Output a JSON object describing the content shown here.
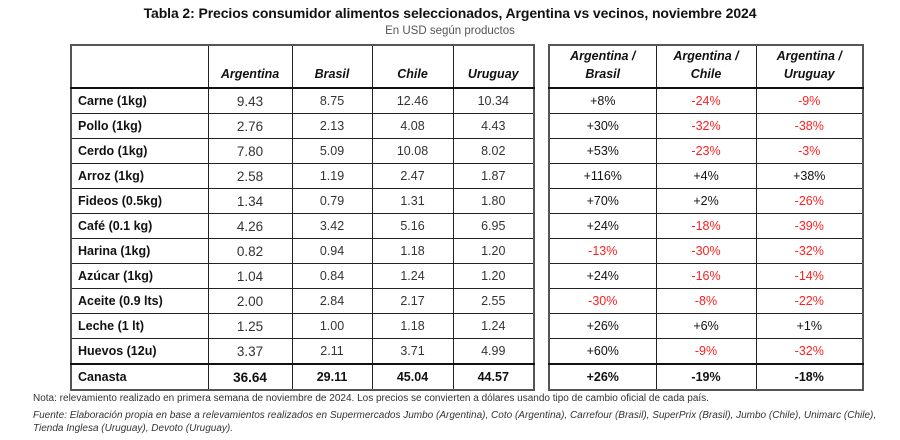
{
  "title": "Tabla 2: Precios consumidor alimentos seleccionados, Argentina vs vecinos, noviembre 2024",
  "subtitle": "En USD según productos",
  "prices_table": {
    "headers": [
      "",
      "Argentina",
      "Brasil",
      "Chile",
      "Uruguay"
    ],
    "rows": [
      {
        "label": "Carne (1kg)",
        "values": [
          "9.43",
          "8.75",
          "12.46",
          "10.34"
        ]
      },
      {
        "label": "Pollo (1kg)",
        "values": [
          "2.76",
          "2.13",
          "4.08",
          "4.43"
        ]
      },
      {
        "label": "Cerdo (1kg)",
        "values": [
          "7.80",
          "5.09",
          "10.08",
          "8.02"
        ]
      },
      {
        "label": "Arroz (1kg)",
        "values": [
          "2.58",
          "1.19",
          "2.47",
          "1.87"
        ]
      },
      {
        "label": "Fideos (0.5kg)",
        "values": [
          "1.34",
          "0.79",
          "1.31",
          "1.80"
        ]
      },
      {
        "label": "Café (0.1 kg)",
        "values": [
          "4.26",
          "3.42",
          "5.16",
          "6.95"
        ]
      },
      {
        "label": "Harina (1kg)",
        "values": [
          "0.82",
          "0.94",
          "1.18",
          "1.20"
        ]
      },
      {
        "label": "Azúcar (1kg)",
        "values": [
          "1.04",
          "0.84",
          "1.24",
          "1.20"
        ]
      },
      {
        "label": "Aceite (0.9 lts)",
        "values": [
          "2.00",
          "2.84",
          "2.17",
          "2.55"
        ]
      },
      {
        "label": "Leche (1 lt)",
        "values": [
          "1.25",
          "1.00",
          "1.18",
          "1.24"
        ]
      },
      {
        "label": "Huevos (12u)",
        "values": [
          "3.37",
          "2.11",
          "3.71",
          "4.99"
        ]
      },
      {
        "label": "Canasta",
        "values": [
          "36.64",
          "29.11",
          "45.04",
          "44.57"
        ]
      }
    ]
  },
  "ratio_table": {
    "headers": [
      {
        "line1": "Argentina /",
        "line2": "Brasil"
      },
      {
        "line1": "Argentina /",
        "line2": "Chile"
      },
      {
        "line1": "Argentina /",
        "line2": "Uruguay"
      }
    ],
    "rows": [
      [
        "+8%",
        "-24%",
        "-9%"
      ],
      [
        "+30%",
        "-32%",
        "-38%"
      ],
      [
        "+53%",
        "-23%",
        "-3%"
      ],
      [
        "+116%",
        "+4%",
        "+38%"
      ],
      [
        "+70%",
        "+2%",
        "-26%"
      ],
      [
        "+24%",
        "-18%",
        "-39%"
      ],
      [
        "-13%",
        "-30%",
        "-32%"
      ],
      [
        "+24%",
        "-16%",
        "-14%"
      ],
      [
        "-30%",
        "-8%",
        "-22%"
      ],
      [
        "+26%",
        "+6%",
        "+1%"
      ],
      [
        "+60%",
        "-9%",
        "-32%"
      ],
      [
        "+26%",
        "-19%",
        "-18%"
      ]
    ]
  },
  "colors": {
    "negative": "#ff1f1f",
    "positive": "#111111"
  },
  "notes": {
    "nota": "Nota: relevamiento realizado en primera semana de noviembre de 2024. Los precios se convierten a dólares usando tipo de cambio oficial de cada país.",
    "fuente": "Fuente: Elaboración propia en base a relevamientos realizados en Supermercados Jumbo (Argentina), Coto (Argentina), Carrefour (Brasil), SuperPrix (Brasil), Jumbo (Chile), Unimarc (Chile), Tienda Inglesa (Uruguay), Devoto (Uruguay)."
  }
}
